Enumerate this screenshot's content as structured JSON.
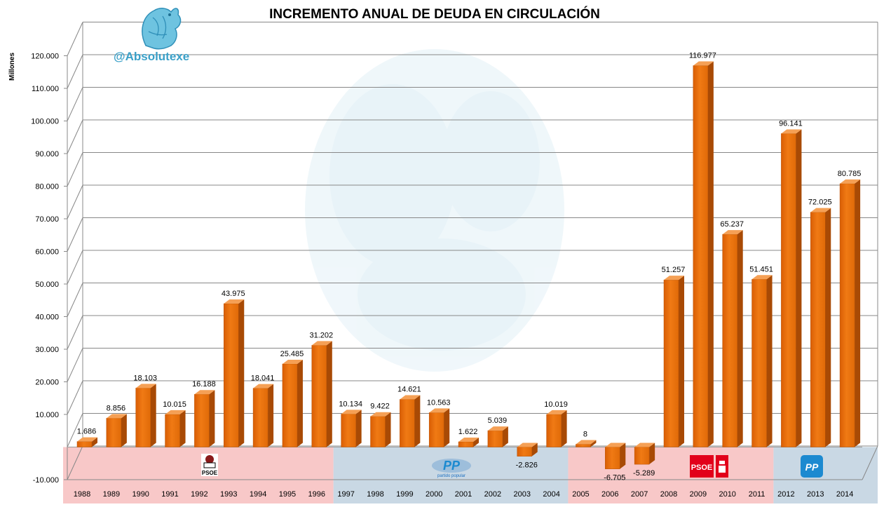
{
  "header": {
    "title": "INCREMENTO ANUAL DE DEUDA EN CIRCULACIÓN",
    "handle": "@Absolutexe"
  },
  "logos": {
    "psoe_small": "PSOE",
    "pp_small_text": "partido popular",
    "psoe_big": "PSOE"
  },
  "colors": {
    "bar": "#e86c0a",
    "bar_side": "#a84a05",
    "bar_top": "#f5a055",
    "psoe_band": "#f8c8c8",
    "pp_band": "#c9d8e4",
    "grid": "#888888",
    "psoe_red": "#e2001a",
    "pp_blue": "#1c8ad0",
    "watermark": "#cfe8f2"
  },
  "chart_data": {
    "type": "bar",
    "title": "INCREMENTO ANUAL DE DEUDA EN CIRCULACIÓN",
    "ylabel": "Millones",
    "xlabel": "",
    "ylim": [
      -10000,
      120000
    ],
    "y_ticks": [
      {
        "v": -10000,
        "label": "-10.000"
      },
      {
        "v": 10000,
        "label": "10.000"
      },
      {
        "v": 20000,
        "label": "20.000"
      },
      {
        "v": 30000,
        "label": "30.000"
      },
      {
        "v": 40000,
        "label": "40.000"
      },
      {
        "v": 50000,
        "label": "50.000"
      },
      {
        "v": 60000,
        "label": "60.000"
      },
      {
        "v": 70000,
        "label": "70.000"
      },
      {
        "v": 80000,
        "label": "80.000"
      },
      {
        "v": 90000,
        "label": "90.000"
      },
      {
        "v": 100000,
        "label": "100.000"
      },
      {
        "v": 110000,
        "label": "110.000"
      },
      {
        "v": 120000,
        "label": "120.000"
      }
    ],
    "grid": true,
    "legend": "none",
    "categories": [
      "1988",
      "1989",
      "1990",
      "1991",
      "1992",
      "1993",
      "1994",
      "1995",
      "1996",
      "1997",
      "1998",
      "1999",
      "2000",
      "2001",
      "2002",
      "2003",
      "2004",
      "2005",
      "2006",
      "2007",
      "2008",
      "2009",
      "2010",
      "2011",
      "2012",
      "2013",
      "2014"
    ],
    "values": [
      1686,
      8856,
      18103,
      10015,
      16188,
      43975,
      18041,
      25485,
      31202,
      10134,
      9422,
      14621,
      10563,
      1622,
      5039,
      -2826,
      10019,
      8,
      -6705,
      -5289,
      51257,
      116977,
      65237,
      51451,
      96141,
      72025,
      80785
    ],
    "value_labels": [
      "1.686",
      "8.856",
      "18.103",
      "10.015",
      "16.188",
      "43.975",
      "18.041",
      "25.485",
      "31.202",
      "10.134",
      "9.422",
      "14.621",
      "10.563",
      "1.622",
      "5.039",
      "-2.826",
      "10.019",
      "8",
      "-6.705",
      "-5.289",
      "51.257",
      "116.977",
      "65.237",
      "51.451",
      "96.141",
      "72.025",
      "80.785"
    ],
    "periods": [
      {
        "party": "PSOE",
        "from": "1988",
        "to": "1996"
      },
      {
        "party": "PP",
        "from": "1997",
        "to": "2004"
      },
      {
        "party": "PSOE",
        "from": "2005",
        "to": "2011"
      },
      {
        "party": "PP",
        "from": "2012",
        "to": "2014"
      }
    ]
  }
}
